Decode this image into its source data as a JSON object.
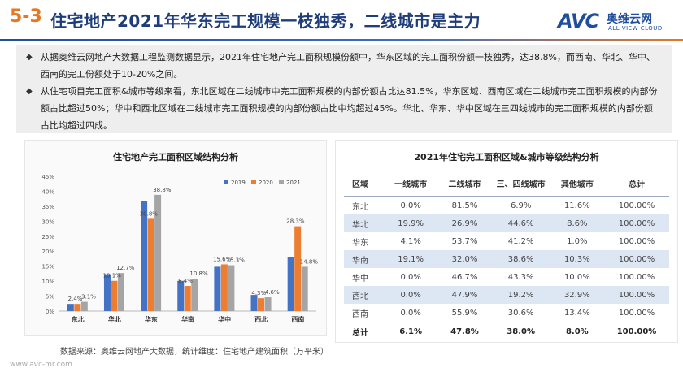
{
  "header": {
    "section_number": "5-3",
    "title": "住宅地产2021年华东完工规模一枝独秀，二线城市是主力",
    "logo_text": "AVC",
    "logo_cn": "奥维云网",
    "logo_en": "ALL VIEW CLOUD"
  },
  "summary": {
    "bullets": [
      "从据奥维云网地产大数据工程监测数据显示，2021年住宅地产完工面积规模份额中，华东区域的完工面积份额一枝独秀，达38.8%，而西南、华北、华中、西南的完工份额处于10-20%之间。",
      "从住宅项目完工面积&城市等级来看，东北区域在二线城市中完工面积规模的内部份额占比达81.5%，华东区域、西南区域在二线城市完工面积规模的内部份额占比超过50%；华中和西北区域在二线城市完工面积规模的内部份额占比中均超过45%。华北、华东、华中区域在三四线城市的完工面积规模的内部份额占比均超过四成。"
    ],
    "bullet_symbol": "◆"
  },
  "chart_data": {
    "type": "bar",
    "title": "住宅地产完工面积区域结构分析",
    "categories": [
      "东北",
      "华北",
      "华东",
      "华南",
      "华中",
      "西北",
      "西南"
    ],
    "series": [
      {
        "name": "2019",
        "color": "#4472c4",
        "values": [
          2.4,
          12.3,
          36.8,
          10.1,
          14.8,
          5.4,
          18.1
        ]
      },
      {
        "name": "2020",
        "color": "#ed7d31",
        "values": [
          2.4,
          10.1,
          30.8,
          8.4,
          15.6,
          4.3,
          28.3
        ]
      },
      {
        "name": "2021",
        "color": "#a5a5a5",
        "values": [
          3.1,
          12.7,
          38.8,
          10.8,
          15.3,
          4.6,
          14.8
        ]
      }
    ],
    "data_labels": [
      {
        "category": "东北",
        "series": "2020",
        "text": "2.4%"
      },
      {
        "category": "东北",
        "series": "2021",
        "text": "3.1%"
      },
      {
        "category": "华北",
        "series": "2020",
        "text": "10.1%"
      },
      {
        "category": "华北",
        "series": "2021",
        "text": "12.7%"
      },
      {
        "category": "华东",
        "series": "2020",
        "text": "30.8%"
      },
      {
        "category": "华东",
        "series": "2021",
        "text": "38.8%"
      },
      {
        "category": "华南",
        "series": "2020",
        "text": "8.4%"
      },
      {
        "category": "华南",
        "series": "2021",
        "text": "10.8%"
      },
      {
        "category": "华中",
        "series": "2020",
        "text": "15.6%"
      },
      {
        "category": "华中",
        "series": "2021",
        "text": "15.3%"
      },
      {
        "category": "西北",
        "series": "2020",
        "text": "4.3%"
      },
      {
        "category": "西北",
        "series": "2021",
        "text": "4.6%"
      },
      {
        "category": "西南",
        "series": "2020",
        "text": "28.3%"
      },
      {
        "category": "西南",
        "series": "2021",
        "text": "14.8%"
      }
    ],
    "ylim": [
      0,
      45
    ],
    "yticks": [
      "0%",
      "5%",
      "10%",
      "15%",
      "20%",
      "25%",
      "30%",
      "35%",
      "40%",
      "45%"
    ],
    "legend_position": "top-right",
    "grid": false
  },
  "table": {
    "title": "2021年住宅完工面积区域&城市等级结构分析",
    "headers": [
      "区域",
      "一线城市",
      "二线城市",
      "三、四线城市",
      "其他城市",
      "总计"
    ],
    "rows": [
      [
        "东北",
        "0.0%",
        "81.5%",
        "6.9%",
        "11.6%",
        "100.00%"
      ],
      [
        "华北",
        "19.9%",
        "26.9%",
        "44.6%",
        "8.6%",
        "100.00%"
      ],
      [
        "华东",
        "4.1%",
        "53.7%",
        "41.2%",
        "1.0%",
        "100.00%"
      ],
      [
        "华南",
        "19.1%",
        "32.0%",
        "38.6%",
        "10.3%",
        "100.00%"
      ],
      [
        "华中",
        "0.0%",
        "46.7%",
        "43.3%",
        "10.0%",
        "100.00%"
      ],
      [
        "西北",
        "0.0%",
        "47.9%",
        "19.2%",
        "32.9%",
        "100.00%"
      ],
      [
        "西南",
        "0.0%",
        "55.9%",
        "30.6%",
        "13.4%",
        "100.00%"
      ]
    ],
    "total_row": [
      "总计",
      "6.1%",
      "47.8%",
      "38.0%",
      "8.0%",
      "100.00%"
    ]
  },
  "footer": {
    "source": "数据来源：奥维云网地产大数据，统计维度：住宅地产建筑面积（万平米）",
    "url": "www.avc-mr.com"
  }
}
